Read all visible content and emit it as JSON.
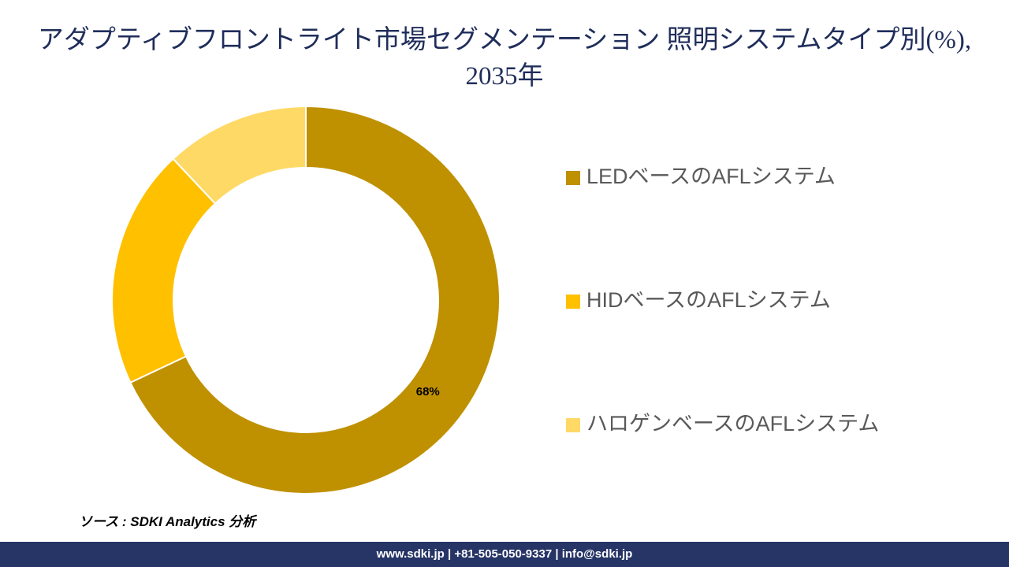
{
  "chart_data": {
    "type": "donut",
    "title": "アダプティブフロントライト市場セグメンテーション 照明システムタイプ別(%), 2035年",
    "categories": [
      "LEDベースのAFLシステム",
      "HIDベースのAFLシステム",
      "ハロゲンベースのAFLシステム"
    ],
    "values": [
      68,
      20,
      12
    ],
    "value_labels": [
      "68%",
      null,
      null
    ],
    "colors": [
      "#bf9000",
      "#ffc000",
      "#ffd966"
    ],
    "legend": "right"
  },
  "source": "ソース : SDKI Analytics 分析",
  "footer": "www.sdki.jp | +81-505-050-9337 | info@sdki.jp"
}
